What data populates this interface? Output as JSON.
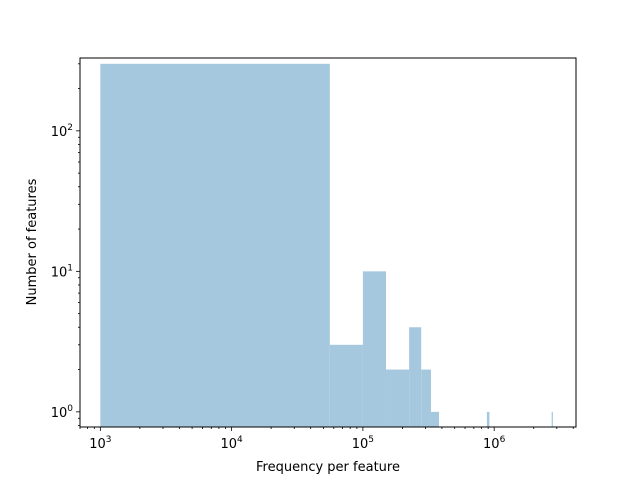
{
  "chart_data": {
    "type": "bar",
    "xlabel": "Frequency per feature",
    "ylabel": "Number of features",
    "xscale": "log",
    "yscale": "log",
    "xlim": [
      700,
      4200000
    ],
    "ylim": [
      0.78,
      330
    ],
    "grid": false,
    "bar_color": "#a6c8de",
    "x_ticks": [
      {
        "value": 1000,
        "base": "10",
        "exp": "3"
      },
      {
        "value": 10000,
        "base": "10",
        "exp": "4"
      },
      {
        "value": 100000,
        "base": "10",
        "exp": "5"
      },
      {
        "value": 1000000,
        "base": "10",
        "exp": "6"
      }
    ],
    "y_ticks": [
      {
        "value": 1,
        "base": "10",
        "exp": "0"
      },
      {
        "value": 10,
        "base": "10",
        "exp": "1"
      },
      {
        "value": 100,
        "base": "10",
        "exp": "2"
      }
    ],
    "bins": [
      {
        "x0": 1000,
        "x1": 56000,
        "count": 300
      },
      {
        "x0": 56000,
        "x1": 100000,
        "count": 3
      },
      {
        "x0": 100000,
        "x1": 150000,
        "count": 10
      },
      {
        "x0": 150000,
        "x1": 225000,
        "count": 2
      },
      {
        "x0": 225000,
        "x1": 278000,
        "count": 4
      },
      {
        "x0": 278000,
        "x1": 330000,
        "count": 2
      },
      {
        "x0": 330000,
        "x1": 380000,
        "count": 1
      },
      {
        "x0": 880000,
        "x1": 920000,
        "count": 1
      },
      {
        "x0": 2740000,
        "x1": 2800000,
        "count": 1
      }
    ]
  }
}
